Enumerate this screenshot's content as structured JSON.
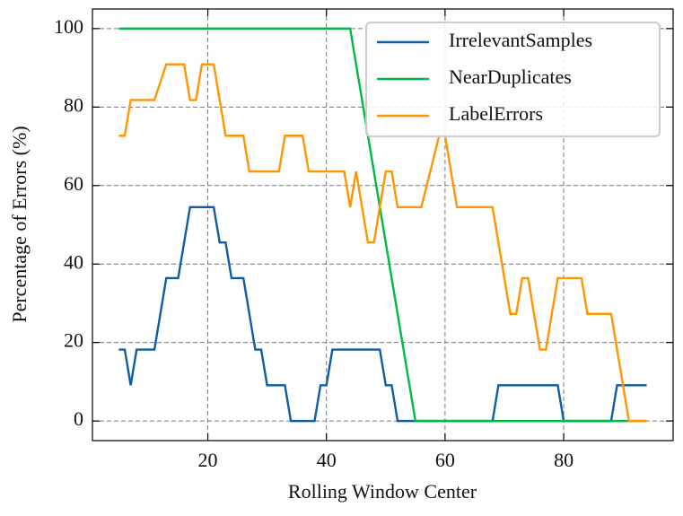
{
  "chart_data": {
    "type": "line",
    "xlabel": "Rolling Window Center",
    "ylabel": "Percentage of Errors (%)",
    "xlim": [
      0.55,
      98.45
    ],
    "ylim": [
      -5,
      105
    ],
    "xticks": [
      20,
      40,
      60,
      80
    ],
    "yticks": [
      0,
      20,
      40,
      60,
      80,
      100
    ],
    "grid": true,
    "legend": "upper right",
    "series": [
      {
        "name": "IrrelevantSamples",
        "color": "#0c5da5",
        "x": [
          5,
          6,
          7,
          8,
          11,
          13,
          15,
          17,
          21,
          22,
          23,
          24,
          26,
          28,
          29,
          30,
          33,
          34,
          38,
          39,
          40,
          41,
          49,
          50,
          51,
          52,
          68,
          69,
          79,
          80,
          88,
          89,
          94
        ],
        "values": [
          18.2,
          18.2,
          9.1,
          18.2,
          18.2,
          36.4,
          36.4,
          54.5,
          54.5,
          45.5,
          45.5,
          36.4,
          36.4,
          18.2,
          18.2,
          9.1,
          9.1,
          0,
          0,
          9.1,
          9.1,
          18.2,
          18.2,
          9.1,
          9.1,
          0,
          0,
          9.1,
          9.1,
          0,
          0,
          9.1,
          9.1
        ]
      },
      {
        "name": "NearDuplicates",
        "color": "#00b945",
        "x": [
          5,
          44,
          55,
          94
        ],
        "values": [
          100,
          100,
          0,
          0
        ]
      },
      {
        "name": "LabelErrors",
        "color": "#ff9500",
        "x": [
          5,
          6,
          7,
          11,
          13,
          16,
          17,
          18,
          19,
          21,
          23,
          26,
          27,
          32,
          33,
          36,
          37,
          43,
          44,
          45,
          46,
          47,
          48,
          50,
          51,
          52,
          56,
          59,
          60,
          62,
          68,
          71,
          72,
          73,
          74,
          76,
          77,
          79,
          83,
          84,
          88,
          91,
          94
        ],
        "values": [
          72.7,
          72.7,
          81.8,
          81.8,
          90.9,
          90.9,
          81.8,
          81.8,
          90.9,
          90.9,
          72.7,
          72.7,
          63.6,
          63.6,
          72.7,
          72.7,
          63.6,
          63.6,
          54.5,
          63.6,
          54.5,
          45.5,
          45.5,
          63.6,
          63.6,
          54.5,
          54.5,
          72.7,
          72.7,
          54.5,
          54.5,
          27.3,
          27.3,
          36.4,
          36.4,
          18.2,
          18.2,
          36.4,
          36.4,
          27.3,
          27.3,
          0,
          0
        ]
      }
    ]
  }
}
